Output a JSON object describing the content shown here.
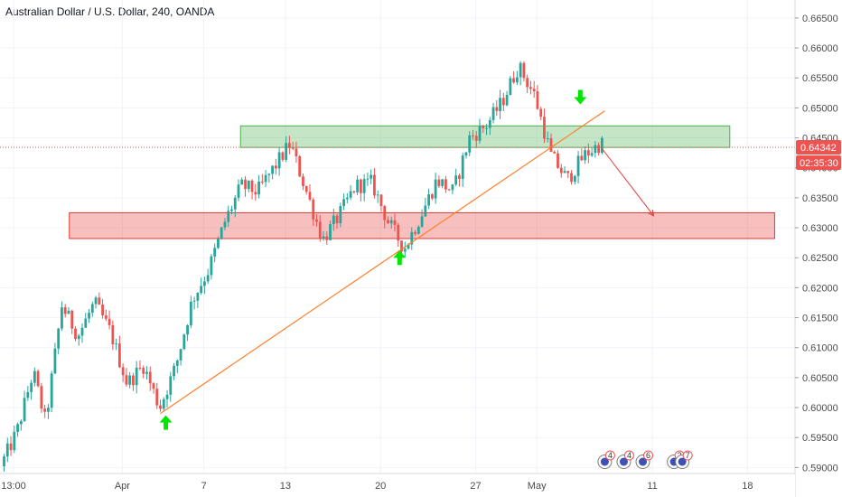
{
  "chart_data": {
    "type": "candlestick",
    "title": "Australian Dollar / U.S. Dollar, 240, OANDA",
    "colors": {
      "up": "#26a69a",
      "down": "#ef5350",
      "resistance_zone": "#4caf50",
      "support_zone": "#e53935",
      "trendline": "#ff7f27",
      "projection": "#e53935",
      "arrows": "#00e600",
      "price_badge": "#ef5350",
      "grid": "#f0f3fa"
    },
    "grid": true,
    "y_axis": {
      "min": 0.589,
      "max": 0.668,
      "ticks": [
        "0.59000",
        "0.59500",
        "0.60000",
        "0.60500",
        "0.61000",
        "0.61500",
        "0.62000",
        "0.62500",
        "0.63000",
        "0.63500",
        "0.64000",
        "0.64500",
        "0.65000",
        "0.65500",
        "0.66000",
        "0.66500"
      ]
    },
    "x_axis": {
      "span_days": [
        0,
        58.5
      ],
      "ticks": [
        {
          "label": "13:00",
          "day": 1
        },
        {
          "label": "Apr",
          "day": 9
        },
        {
          "label": "7",
          "day": 15
        },
        {
          "label": "13",
          "day": 21
        },
        {
          "label": "20",
          "day": 28
        },
        {
          "label": "27",
          "day": 35
        },
        {
          "label": "May",
          "day": 39.5
        },
        {
          "label": "11",
          "day": 48
        },
        {
          "label": "18",
          "day": 55
        }
      ]
    },
    "price_path": [
      [
        0.3,
        0.5902
      ],
      [
        1.5,
        0.596
      ],
      [
        2.7,
        0.606
      ],
      [
        3.6,
        0.5975
      ],
      [
        4.8,
        0.617
      ],
      [
        6.0,
        0.612
      ],
      [
        7.2,
        0.6175
      ],
      [
        8.4,
        0.6125
      ],
      [
        9.6,
        0.604
      ],
      [
        10.8,
        0.607
      ],
      [
        12.0,
        0.6
      ],
      [
        13.2,
        0.607
      ],
      [
        14.4,
        0.618
      ],
      [
        15.6,
        0.623
      ],
      [
        16.8,
        0.631
      ],
      [
        18.0,
        0.637
      ],
      [
        19.2,
        0.636
      ],
      [
        20.4,
        0.64
      ],
      [
        21.6,
        0.644
      ],
      [
        22.8,
        0.636
      ],
      [
        24.0,
        0.628
      ],
      [
        25.2,
        0.632
      ],
      [
        26.4,
        0.637
      ],
      [
        27.6,
        0.6375
      ],
      [
        28.8,
        0.631
      ],
      [
        30.0,
        0.6265
      ],
      [
        31.2,
        0.632
      ],
      [
        32.4,
        0.638
      ],
      [
        33.6,
        0.636
      ],
      [
        34.8,
        0.645
      ],
      [
        36.0,
        0.647
      ],
      [
        37.2,
        0.651
      ],
      [
        38.4,
        0.657
      ],
      [
        39.6,
        0.652
      ],
      [
        40.8,
        0.642
      ],
      [
        42.0,
        0.638
      ],
      [
        43.2,
        0.642
      ],
      [
        44.4,
        0.644
      ]
    ],
    "current_price": "0.64342",
    "countdown": "02:35:30",
    "zones": [
      {
        "name": "resistance-zone",
        "from_day": 17.7,
        "to_day": 53.7,
        "y_low": 0.6434,
        "y_high": 0.647
      },
      {
        "name": "support-zone",
        "from_day": 5.1,
        "to_day": 57.0,
        "y_low": 0.6282,
        "y_high": 0.6325
      }
    ],
    "trendline": {
      "from": [
        11.8,
        0.599
      ],
      "to": [
        44.5,
        0.6495
      ]
    },
    "projection_arrow": {
      "from": [
        44.3,
        0.6432
      ],
      "to": [
        48.1,
        0.632
      ]
    },
    "arrows": [
      {
        "name": "up-arrow-1",
        "day": 12.2,
        "price": 0.5975,
        "dir": "up"
      },
      {
        "name": "up-arrow-2",
        "day": 29.4,
        "price": 0.625,
        "dir": "up"
      },
      {
        "name": "down-arrow-1",
        "day": 42.7,
        "price": 0.6518,
        "dir": "down"
      }
    ],
    "events": [
      {
        "day": 44.5,
        "label": "4",
        "color": "#ef5350"
      },
      {
        "day": 45.9,
        "label": "4",
        "color": "#ef5350"
      },
      {
        "day": 47.3,
        "label": "6",
        "color": "#ef5350"
      },
      {
        "day": 49.6,
        "label": "2",
        "color": "#ef5350"
      },
      {
        "day": 50.2,
        "label": "7",
        "color": "#ef5350"
      }
    ]
  }
}
